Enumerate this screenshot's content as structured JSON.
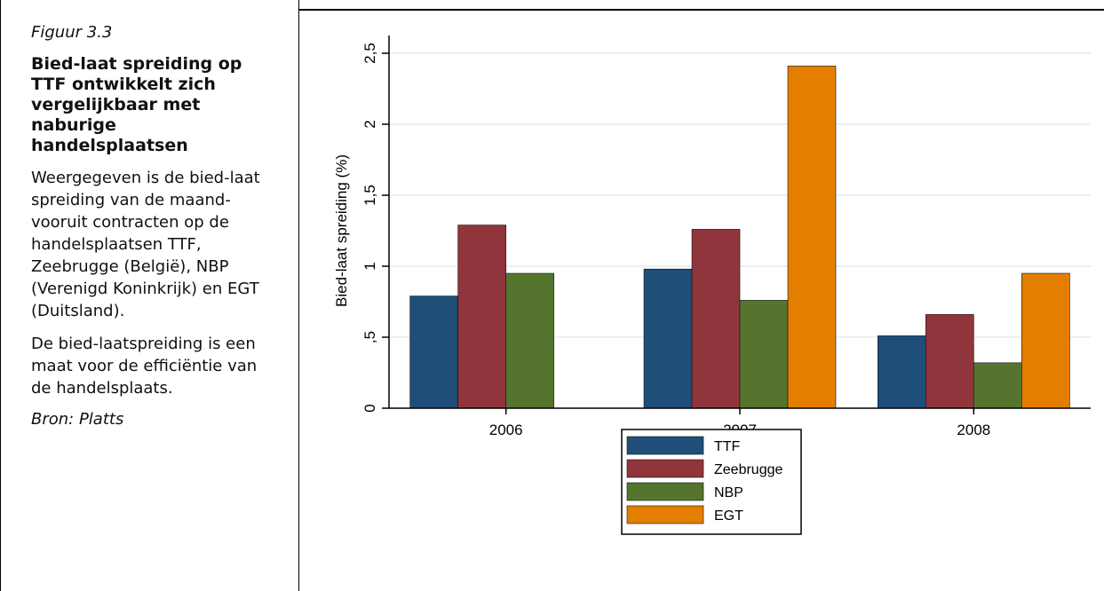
{
  "sidebar": {
    "figure_label": "Figuur 3.3",
    "title": "Bied-laat spreiding op TTF ontwikkelt zich vergelijkbaar met naburige handelsplaatsen",
    "description": "Weergegeven is de bied-laat spreiding van de maand-vooruit contracten op de handelsplaatsen TTF, Zeebrugge (België), NBP (Verenigd Koninkrijk) en EGT (Duitsland).",
    "note": "De bied-laatspreiding is een maat voor de efficiëntie van de handelsplaats.",
    "source": "Bron: Platts"
  },
  "chart_data": {
    "type": "bar",
    "title": "",
    "xlabel": "",
    "ylabel": "Bied-laat spreiding  (%)",
    "categories": [
      "2006",
      "2007",
      "2008"
    ],
    "series": [
      {
        "name": "TTF",
        "values": [
          0.79,
          0.98,
          0.51
        ],
        "color": "#1f4e79"
      },
      {
        "name": "Zeebrugge",
        "values": [
          1.29,
          1.26,
          0.66
        ],
        "color": "#90353b"
      },
      {
        "name": "NBP",
        "values": [
          0.95,
          0.76,
          0.32
        ],
        "color": "#55752f"
      },
      {
        "name": "EGT",
        "values": [
          null,
          2.41,
          0.95
        ],
        "color": "#e37e00"
      }
    ],
    "ylim": [
      0,
      2.5
    ],
    "yticks": [
      0,
      0.5,
      1,
      1.5,
      2,
      2.5
    ],
    "ytick_labels": [
      "0",
      ",5",
      "1",
      "1,5",
      "2",
      "2,5"
    ],
    "grid": true,
    "grid_color": "#e2ecf0",
    "legend_position": "bottom"
  }
}
